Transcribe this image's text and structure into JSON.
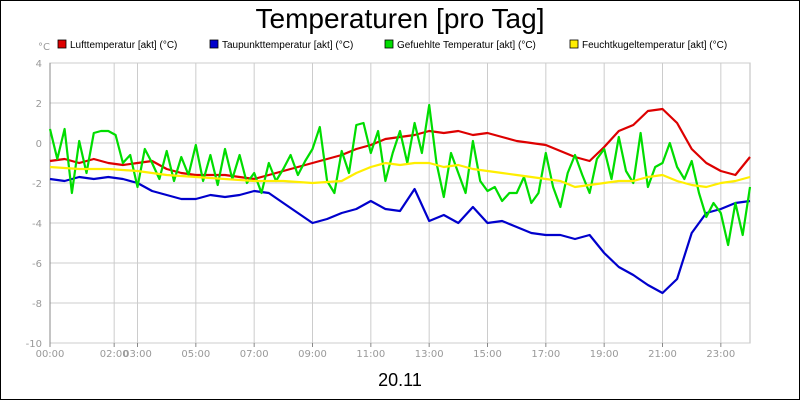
{
  "chart_data": {
    "type": "line",
    "title": "Temperaturen [pro Tag]",
    "unit_label": "°C",
    "date_label": "20.11",
    "xlabel": "",
    "ylabel": "°C",
    "ylim": [
      -10,
      4
    ],
    "yticks": [
      4,
      2,
      0,
      -2,
      -4,
      -6,
      -8,
      -10
    ],
    "xlim": [
      0,
      24
    ],
    "x_ticks": [
      {
        "h": 0,
        "label": "00:00"
      },
      {
        "h": 2.2,
        "label": "02:00"
      },
      {
        "h": 3.0,
        "label": "03:00"
      },
      {
        "h": 5.0,
        "label": "05:00"
      },
      {
        "h": 7.0,
        "label": "07:00"
      },
      {
        "h": 9.0,
        "label": "09:00"
      },
      {
        "h": 11.0,
        "label": "11:00"
      },
      {
        "h": 13.0,
        "label": "13:00"
      },
      {
        "h": 15.0,
        "label": "15:00"
      },
      {
        "h": 17.0,
        "label": "17:00"
      },
      {
        "h": 19.0,
        "label": "19:00"
      },
      {
        "h": 21.0,
        "label": "21:00"
      },
      {
        "h": 23.0,
        "label": "23:00"
      }
    ],
    "grid": true,
    "legend_position": "top",
    "series": [
      {
        "name": "Lufttemperatur [akt] (°C)",
        "color": "#dd0000",
        "points": [
          [
            0,
            -0.9
          ],
          [
            0.5,
            -0.8
          ],
          [
            1,
            -1.0
          ],
          [
            1.5,
            -0.8
          ],
          [
            2,
            -1.0
          ],
          [
            2.5,
            -1.1
          ],
          [
            3,
            -1.0
          ],
          [
            3.5,
            -0.9
          ],
          [
            4,
            -1.3
          ],
          [
            4.5,
            -1.5
          ],
          [
            5,
            -1.6
          ],
          [
            5.5,
            -1.6
          ],
          [
            6,
            -1.6
          ],
          [
            6.5,
            -1.7
          ],
          [
            7,
            -1.8
          ],
          [
            7.5,
            -1.6
          ],
          [
            8,
            -1.4
          ],
          [
            8.5,
            -1.2
          ],
          [
            9,
            -1.0
          ],
          [
            9.5,
            -0.8
          ],
          [
            10,
            -0.6
          ],
          [
            10.5,
            -0.3
          ],
          [
            11,
            -0.1
          ],
          [
            11.5,
            0.2
          ],
          [
            12,
            0.3
          ],
          [
            12.5,
            0.4
          ],
          [
            13,
            0.6
          ],
          [
            13.5,
            0.5
          ],
          [
            14,
            0.6
          ],
          [
            14.5,
            0.4
          ],
          [
            15,
            0.5
          ],
          [
            15.5,
            0.3
          ],
          [
            16,
            0.1
          ],
          [
            16.5,
            0.0
          ],
          [
            17,
            -0.1
          ],
          [
            17.5,
            -0.4
          ],
          [
            18,
            -0.7
          ],
          [
            18.5,
            -0.9
          ],
          [
            19,
            -0.2
          ],
          [
            19.5,
            0.6
          ],
          [
            20,
            0.9
          ],
          [
            20.5,
            1.6
          ],
          [
            21,
            1.7
          ],
          [
            21.5,
            1.0
          ],
          [
            22,
            -0.3
          ],
          [
            22.5,
            -1.0
          ],
          [
            23,
            -1.4
          ],
          [
            23.5,
            -1.6
          ],
          [
            24,
            -0.7
          ]
        ]
      },
      {
        "name": "Taupunkttemperatur [akt] (°C)",
        "color": "#0000cc",
        "points": [
          [
            0,
            -1.8
          ],
          [
            0.5,
            -1.9
          ],
          [
            1,
            -1.7
          ],
          [
            1.5,
            -1.8
          ],
          [
            2,
            -1.7
          ],
          [
            2.5,
            -1.8
          ],
          [
            3,
            -2.0
          ],
          [
            3.5,
            -2.4
          ],
          [
            4,
            -2.6
          ],
          [
            4.5,
            -2.8
          ],
          [
            5,
            -2.8
          ],
          [
            5.5,
            -2.6
          ],
          [
            6,
            -2.7
          ],
          [
            6.5,
            -2.6
          ],
          [
            7,
            -2.4
          ],
          [
            7.5,
            -2.5
          ],
          [
            8,
            -3.0
          ],
          [
            8.5,
            -3.5
          ],
          [
            9,
            -4.0
          ],
          [
            9.5,
            -3.8
          ],
          [
            10,
            -3.5
          ],
          [
            10.5,
            -3.3
          ],
          [
            11,
            -2.9
          ],
          [
            11.5,
            -3.3
          ],
          [
            12,
            -3.4
          ],
          [
            12.5,
            -2.3
          ],
          [
            13,
            -3.9
          ],
          [
            13.5,
            -3.6
          ],
          [
            14,
            -4.0
          ],
          [
            14.5,
            -3.2
          ],
          [
            15,
            -4.0
          ],
          [
            15.5,
            -3.9
          ],
          [
            16,
            -4.2
          ],
          [
            16.5,
            -4.5
          ],
          [
            17,
            -4.6
          ],
          [
            17.5,
            -4.6
          ],
          [
            18,
            -4.8
          ],
          [
            18.5,
            -4.6
          ],
          [
            19,
            -5.5
          ],
          [
            19.5,
            -6.2
          ],
          [
            20,
            -6.6
          ],
          [
            20.5,
            -7.1
          ],
          [
            21,
            -7.5
          ],
          [
            21.5,
            -6.8
          ],
          [
            22,
            -4.5
          ],
          [
            22.5,
            -3.5
          ],
          [
            23,
            -3.3
          ],
          [
            23.5,
            -3.0
          ],
          [
            24,
            -2.9
          ]
        ]
      },
      {
        "name": "Gefuehlte Temperatur [akt] (°C)",
        "color": "#00dd00",
        "points": [
          [
            0,
            0.7
          ],
          [
            0.25,
            -0.8
          ],
          [
            0.5,
            0.7
          ],
          [
            0.75,
            -2.5
          ],
          [
            1,
            0.1
          ],
          [
            1.25,
            -1.5
          ],
          [
            1.5,
            0.5
          ],
          [
            1.75,
            0.6
          ],
          [
            2,
            0.6
          ],
          [
            2.25,
            0.4
          ],
          [
            2.5,
            -1.0
          ],
          [
            2.75,
            -0.6
          ],
          [
            3,
            -2.2
          ],
          [
            3.25,
            -0.3
          ],
          [
            3.5,
            -1.0
          ],
          [
            3.75,
            -1.8
          ],
          [
            4,
            -0.4
          ],
          [
            4.25,
            -1.9
          ],
          [
            4.5,
            -0.7
          ],
          [
            4.75,
            -1.6
          ],
          [
            5,
            -0.1
          ],
          [
            5.25,
            -1.9
          ],
          [
            5.5,
            -0.6
          ],
          [
            5.75,
            -2.1
          ],
          [
            6,
            -0.3
          ],
          [
            6.25,
            -1.8
          ],
          [
            6.5,
            -0.6
          ],
          [
            6.75,
            -2.0
          ],
          [
            7,
            -1.5
          ],
          [
            7.25,
            -2.5
          ],
          [
            7.5,
            -1.0
          ],
          [
            7.75,
            -1.9
          ],
          [
            8,
            -1.3
          ],
          [
            8.25,
            -0.6
          ],
          [
            8.5,
            -1.6
          ],
          [
            8.75,
            -0.9
          ],
          [
            9,
            -0.3
          ],
          [
            9.25,
            0.8
          ],
          [
            9.5,
            -1.9
          ],
          [
            9.75,
            -2.5
          ],
          [
            10,
            -0.4
          ],
          [
            10.25,
            -1.5
          ],
          [
            10.5,
            0.9
          ],
          [
            10.75,
            1.0
          ],
          [
            11,
            -0.5
          ],
          [
            11.25,
            0.6
          ],
          [
            11.5,
            -1.9
          ],
          [
            11.75,
            -0.5
          ],
          [
            12,
            0.6
          ],
          [
            12.25,
            -1.0
          ],
          [
            12.5,
            1.0
          ],
          [
            12.75,
            -0.5
          ],
          [
            13,
            1.9
          ],
          [
            13.25,
            -1.0
          ],
          [
            13.5,
            -2.7
          ],
          [
            13.75,
            -0.5
          ],
          [
            14,
            -1.5
          ],
          [
            14.25,
            -2.5
          ],
          [
            14.5,
            0.1
          ],
          [
            14.75,
            -1.9
          ],
          [
            15,
            -2.4
          ],
          [
            15.25,
            -2.2
          ],
          [
            15.5,
            -2.9
          ],
          [
            15.75,
            -2.5
          ],
          [
            16,
            -2.5
          ],
          [
            16.25,
            -1.7
          ],
          [
            16.5,
            -3.0
          ],
          [
            16.75,
            -2.5
          ],
          [
            17,
            -0.5
          ],
          [
            17.25,
            -2.2
          ],
          [
            17.5,
            -3.2
          ],
          [
            17.75,
            -1.5
          ],
          [
            18,
            -0.6
          ],
          [
            18.25,
            -1.6
          ],
          [
            18.5,
            -2.5
          ],
          [
            18.75,
            -0.8
          ],
          [
            19,
            -0.3
          ],
          [
            19.25,
            -1.8
          ],
          [
            19.5,
            0.3
          ],
          [
            19.75,
            -1.4
          ],
          [
            20,
            -2.0
          ],
          [
            20.25,
            0.5
          ],
          [
            20.5,
            -2.2
          ],
          [
            20.75,
            -1.2
          ],
          [
            21,
            -1.0
          ],
          [
            21.25,
            0.0
          ],
          [
            21.5,
            -1.2
          ],
          [
            21.75,
            -1.8
          ],
          [
            22,
            -0.9
          ],
          [
            22.25,
            -2.5
          ],
          [
            22.5,
            -3.7
          ],
          [
            22.75,
            -3.0
          ],
          [
            23,
            -3.5
          ],
          [
            23.25,
            -5.1
          ],
          [
            23.5,
            -3.0
          ],
          [
            23.75,
            -4.6
          ],
          [
            24,
            -2.2
          ]
        ]
      },
      {
        "name": "Feuchtkugeltemperatur [akt] (°C)",
        "color": "#ffee00",
        "points": [
          [
            0,
            -1.2
          ],
          [
            1,
            -1.3
          ],
          [
            2,
            -1.3
          ],
          [
            3,
            -1.4
          ],
          [
            4,
            -1.6
          ],
          [
            5,
            -1.7
          ],
          [
            6,
            -1.8
          ],
          [
            7,
            -1.9
          ],
          [
            8,
            -1.9
          ],
          [
            9,
            -2.0
          ],
          [
            10,
            -1.9
          ],
          [
            10.5,
            -1.5
          ],
          [
            11,
            -1.2
          ],
          [
            11.5,
            -1.0
          ],
          [
            12,
            -1.1
          ],
          [
            12.5,
            -1.0
          ],
          [
            13,
            -1.0
          ],
          [
            13.5,
            -1.2
          ],
          [
            14,
            -1.1
          ],
          [
            14.5,
            -1.3
          ],
          [
            15,
            -1.4
          ],
          [
            15.5,
            -1.5
          ],
          [
            16,
            -1.6
          ],
          [
            16.5,
            -1.7
          ],
          [
            17,
            -1.8
          ],
          [
            17.5,
            -1.9
          ],
          [
            18,
            -2.2
          ],
          [
            18.5,
            -2.1
          ],
          [
            19,
            -2.0
          ],
          [
            19.5,
            -1.9
          ],
          [
            20,
            -1.9
          ],
          [
            20.5,
            -1.7
          ],
          [
            21,
            -1.6
          ],
          [
            21.5,
            -1.9
          ],
          [
            22,
            -2.1
          ],
          [
            22.5,
            -2.2
          ],
          [
            23,
            -2.0
          ],
          [
            23.5,
            -1.9
          ],
          [
            24,
            -1.7
          ]
        ]
      }
    ]
  }
}
